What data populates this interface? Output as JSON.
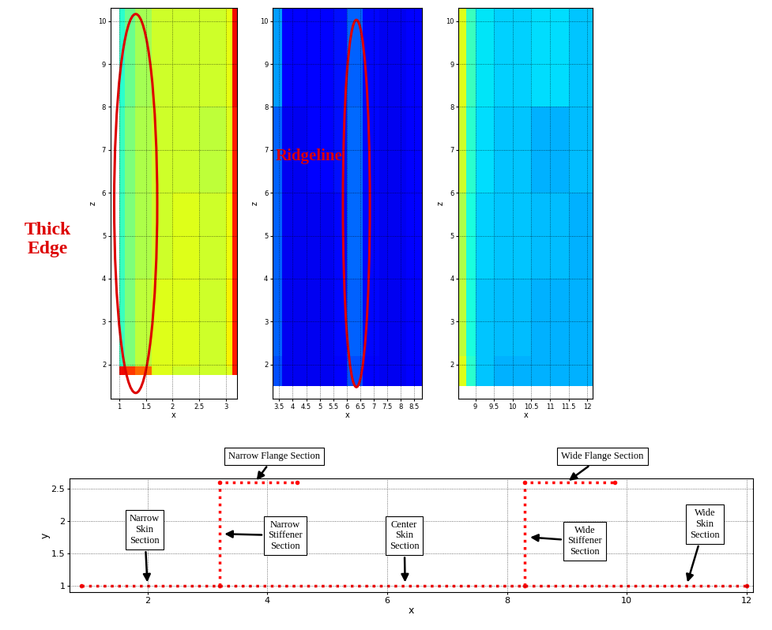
{
  "chart_data": [
    {
      "type": "heatmap",
      "xlabel": "x",
      "ylabel": "z",
      "xlim": [
        0.83,
        3.21
      ],
      "ylim": [
        1.2,
        10.3
      ],
      "xticks": [
        1,
        1.5,
        2,
        2.5,
        3
      ],
      "yticks": [
        2,
        3,
        4,
        5,
        6,
        7,
        8,
        9,
        10
      ],
      "grid": true,
      "x_edges": [
        1.0,
        1.1,
        1.3,
        1.6,
        2.0,
        2.5,
        3.0,
        3.12,
        3.21
      ],
      "z_edges": [
        1.75,
        1.95,
        4,
        6,
        8,
        10.3
      ],
      "cells": [
        [
          0.9,
          0.85,
          0.8,
          0.62,
          0.6,
          0.6,
          0.62,
          0.88
        ],
        [
          0.42,
          0.5,
          0.58,
          0.62,
          0.62,
          0.6,
          0.65,
          0.88
        ],
        [
          0.42,
          0.5,
          0.56,
          0.6,
          0.62,
          0.6,
          0.64,
          0.88
        ],
        [
          0.42,
          0.5,
          0.56,
          0.6,
          0.6,
          0.58,
          0.62,
          0.88
        ],
        [
          0.4,
          0.48,
          0.55,
          0.6,
          0.6,
          0.6,
          0.63,
          0.9
        ]
      ],
      "color_range": [
        0,
        1
      ],
      "tick_labels": true,
      "annotations": [
        {
          "text": "Thick\nEdge"
        }
      ]
    },
    {
      "type": "heatmap",
      "xlabel": "x",
      "ylabel": "z",
      "xlim": [
        3.25,
        8.8
      ],
      "ylim": [
        1.2,
        10.3
      ],
      "xticks": [
        3.5,
        4,
        4.5,
        5,
        5.5,
        6,
        6.5,
        7,
        7.5,
        8,
        8.5
      ],
      "yticks": [
        2,
        3,
        4,
        5,
        6,
        7,
        8,
        9,
        10
      ],
      "grid": true,
      "x_edges": [
        3.25,
        3.6,
        4.5,
        5.5,
        6.0,
        6.6,
        7.2,
        8.2,
        8.8
      ],
      "z_edges": [
        1.5,
        2.2,
        4,
        6,
        8,
        10.3
      ],
      "cells": [
        [
          0.2,
          0.1,
          0.1,
          0.12,
          0.2,
          0.12,
          0.1,
          0.12
        ],
        [
          0.22,
          0.1,
          0.1,
          0.13,
          0.22,
          0.13,
          0.1,
          0.11
        ],
        [
          0.22,
          0.1,
          0.1,
          0.13,
          0.23,
          0.13,
          0.1,
          0.11
        ],
        [
          0.22,
          0.1,
          0.11,
          0.14,
          0.23,
          0.13,
          0.1,
          0.11
        ],
        [
          0.28,
          0.11,
          0.11,
          0.14,
          0.22,
          0.13,
          0.1,
          0.12
        ]
      ],
      "color_range": [
        0,
        1
      ],
      "tick_labels": true,
      "annotations": [
        {
          "text": "Ridgeline"
        }
      ]
    },
    {
      "type": "heatmap",
      "xlabel": "x",
      "ylabel": "z",
      "xlim": [
        8.55,
        12.15
      ],
      "ylim": [
        1.2,
        10.3
      ],
      "xticks": [
        9,
        9.5,
        10,
        10.5,
        11,
        11.5,
        12
      ],
      "yticks": [
        2,
        3,
        4,
        5,
        6,
        7,
        8,
        9,
        10
      ],
      "grid": true,
      "x_edges": [
        8.55,
        8.75,
        9.0,
        9.5,
        10.5,
        11.5,
        12.15
      ],
      "z_edges": [
        1.5,
        2.2,
        4,
        6,
        8,
        10.3
      ],
      "cells": [
        [
          0.62,
          0.4,
          0.32,
          0.3,
          0.3,
          0.3
        ],
        [
          0.58,
          0.38,
          0.32,
          0.31,
          0.3,
          0.3
        ],
        [
          0.56,
          0.38,
          0.33,
          0.32,
          0.31,
          0.3
        ],
        [
          0.6,
          0.4,
          0.34,
          0.32,
          0.3,
          0.31
        ],
        [
          0.62,
          0.42,
          0.35,
          0.33,
          0.34,
          0.32
        ]
      ],
      "color_range": [
        0,
        1
      ],
      "tick_labels": true,
      "annotations": []
    },
    {
      "type": "line",
      "xlabel": "x",
      "ylabel": "y",
      "xlim": [
        0.7,
        12.1
      ],
      "ylim": [
        0.9,
        2.65
      ],
      "xticks": [
        2,
        4,
        6,
        8,
        10,
        12
      ],
      "yticks": [
        1,
        1.5,
        2,
        2.5
      ],
      "grid": true,
      "series": [
        {
          "color": "#ff0000",
          "marker": "o",
          "line_style": "dotted",
          "x": [
            0.9,
            12.0
          ],
          "values": [
            1.0,
            1.0
          ]
        },
        {
          "color": "#ff0000",
          "marker": "o",
          "line_style": "dotted",
          "x": [
            3.2,
            3.2,
            4.5
          ],
          "values": [
            1.0,
            2.6,
            2.6
          ]
        },
        {
          "color": "#ff0000",
          "marker": "o",
          "line_style": "dotted",
          "x": [
            8.3,
            8.3,
            9.8
          ],
          "values": [
            1.0,
            2.6,
            2.6
          ]
        }
      ],
      "annotations": [
        {
          "text": "Narrow\nSkin\nSection",
          "x": 2.0,
          "y": 1.02
        },
        {
          "text": "Narrow Flange Section",
          "x": 3.8,
          "y": 2.6
        },
        {
          "text": "Narrow\nStiffener\nSection",
          "x": 3.25,
          "y": 1.8
        },
        {
          "text": "Center\nSkin\nSection",
          "x": 6.3,
          "y": 1.02
        },
        {
          "text": "Wide Flange Section",
          "x": 9.0,
          "y": 2.6
        },
        {
          "text": "Wide\nStiffener\nSection",
          "x": 8.35,
          "y": 1.75
        },
        {
          "text": "Wide\nSkin\nSection",
          "x": 11.0,
          "y": 1.02
        }
      ]
    }
  ]
}
